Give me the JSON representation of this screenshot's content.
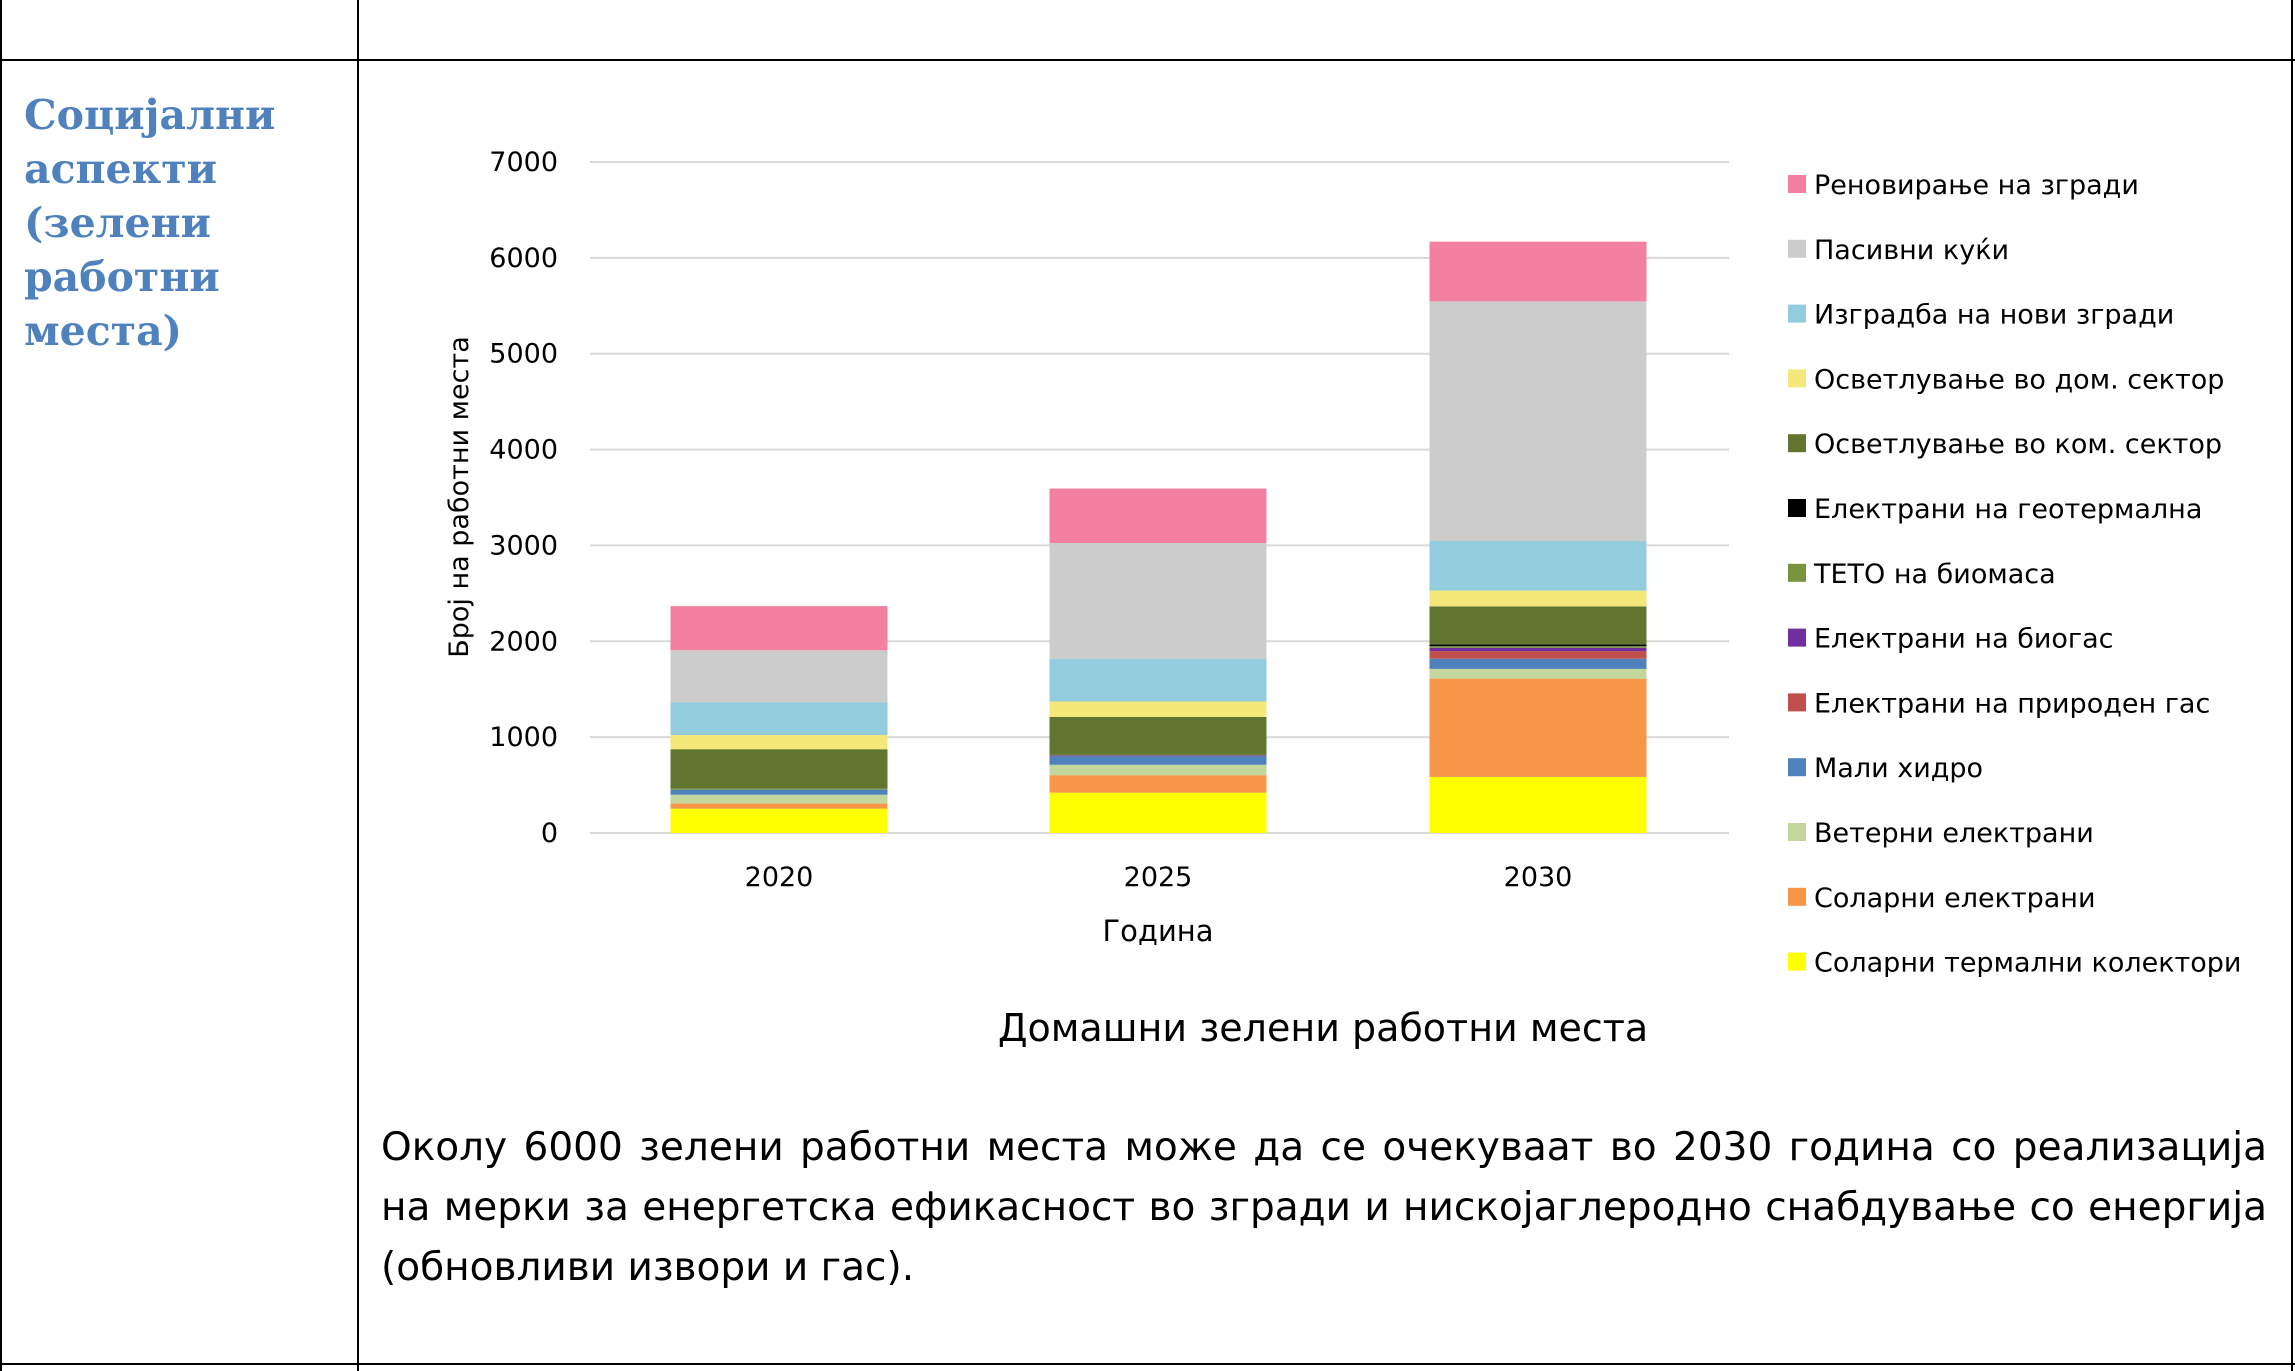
{
  "table": {
    "row_heading_lines": [
      "Социјални",
      "аспекти",
      "(зелени",
      "работни",
      "места)"
    ]
  },
  "chart_data": {
    "type": "bar",
    "stacked": true,
    "title": "Домашни зелени работни места",
    "xlabel": "Година",
    "ylabel": "Број на работни места",
    "categories": [
      "2020",
      "2025",
      "2030"
    ],
    "ylim": [
      0,
      7000
    ],
    "yticks": [
      0,
      1000,
      2000,
      3000,
      4000,
      5000,
      6000,
      7000
    ],
    "grid": true,
    "legend_position": "right",
    "series": [
      {
        "name": "Соларни термални колектори",
        "color": "#ffff00",
        "values": [
          254,
          421,
          585
        ]
      },
      {
        "name": "Соларни електрани",
        "color": "#f79646",
        "values": [
          53,
          182,
          1025
        ]
      },
      {
        "name": "Ветерни електрани",
        "color": "#c3d69b",
        "values": [
          92,
          109,
          102
        ]
      },
      {
        "name": "Мали хидро",
        "color": "#4f81bd",
        "values": [
          53,
          88,
          106
        ]
      },
      {
        "name": "Електрани на природен гас",
        "color": "#c0504d",
        "values": [
          0,
          0,
          80
        ]
      },
      {
        "name": "Електрани на биогас",
        "color": "#7030a0",
        "values": [
          0,
          10,
          34
        ]
      },
      {
        "name": "ТЕТО на биомаса",
        "color": "#77933c",
        "values": [
          10,
          5,
          17
        ]
      },
      {
        "name": "Електрани на геотермална",
        "color": "#000000",
        "values": [
          0,
          0,
          17
        ]
      },
      {
        "name": "Осветлување во ком. сектор",
        "color": "#61752f",
        "values": [
          412,
          396,
          398
        ]
      },
      {
        "name": "Осветлување во дом. сектор",
        "color": "#f5e87a",
        "values": [
          148,
          161,
          165
        ]
      },
      {
        "name": "Изградба на нови згради",
        "color": "#93cddd",
        "values": [
          342,
          446,
          517
        ]
      },
      {
        "name": "Пасивни куќи",
        "color": "#cccccc",
        "values": [
          542,
          1207,
          2500
        ]
      },
      {
        "name": "Реновирање на згради",
        "color": "#f380a1",
        "values": [
          461,
          568,
          623
        ]
      }
    ]
  },
  "paragraph": "Околу 6000 зелени работни места може да се очекуваат во 2030 година со реализација на мерки за енергетска ефикасност во згради и нискојаглеродно снабдување со енергија (обновливи извори и гас)."
}
